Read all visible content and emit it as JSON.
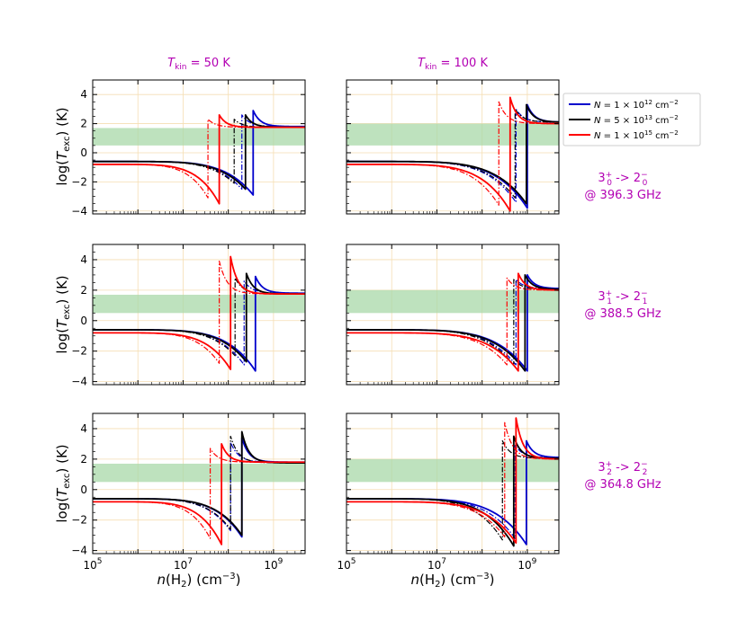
{
  "chart_data": {
    "type": "line",
    "title": "",
    "xlabel": "n(H2) (cm^-3)",
    "ylabel": "log(Texc) (K)",
    "xscale": "log",
    "xlim": [
      100000,
      5000000000
    ],
    "ylim": [
      -4.2,
      5
    ],
    "x_tick_labels": [
      "10^5",
      "10^7",
      "10^9"
    ],
    "y_tick_labels": [
      "-4",
      "-2",
      "0",
      "2",
      "4"
    ],
    "column_titles": [
      "T_kin = 50 K",
      "T_kin = 100 K"
    ],
    "row_titles": [
      {
        "transition": "3_0^+ -> 2_0^-",
        "freq": "@ 396.3 GHz"
      },
      {
        "transition": "3_1^+ -> 2_1^-",
        "freq": "@ 388.5 GHz"
      },
      {
        "transition": "3_2^+ -> 2_2^-",
        "freq": "@ 364.8 GHz"
      }
    ],
    "legend": {
      "placement": "right-of-top-right-panel",
      "entries": [
        {
          "label": "N = 1 × 10^12 cm^-2",
          "color": "#0000cc"
        },
        {
          "label": "N = 5 × 10^13 cm^-2",
          "color": "#000000"
        },
        {
          "label": "N = 1 × 10^15 cm^-2",
          "color": "#ff0000"
        }
      ]
    },
    "shaded_band": {
      "color": "#a8d8a8"
    },
    "panels": [
      {
        "row": 0,
        "col": 0,
        "band": [
          0.5,
          1.7
        ],
        "series": [
          {
            "name": "N=1e12",
            "color": "#0000cc",
            "start": -0.6,
            "logx": 8.55,
            "min": -2.9,
            "peak": 2.9,
            "final": 1.8
          },
          {
            "name": "N=5e13",
            "color": "#000000",
            "start": -0.6,
            "logx": 8.38,
            "min": -2.5,
            "peak": 2.6,
            "final": 1.75
          },
          {
            "name": "N=1e15",
            "color": "#ff0000",
            "start": -0.8,
            "logx": 7.8,
            "min": -3.5,
            "peak": 2.6,
            "final": 1.75
          }
        ]
      },
      {
        "row": 0,
        "col": 1,
        "band": [
          0.5,
          2.0
        ],
        "series": [
          {
            "name": "N=1e12",
            "color": "#0000cc",
            "start": -0.6,
            "logx": 9.0,
            "min": -3.8,
            "peak": 3.3,
            "final": 2.1
          },
          {
            "name": "N=5e13",
            "color": "#000000",
            "start": -0.6,
            "logx": 8.98,
            "min": -3.5,
            "peak": 3.3,
            "final": 2.1
          },
          {
            "name": "N=1e15",
            "color": "#ff0000",
            "start": -0.8,
            "logx": 8.62,
            "min": -4.0,
            "peak": 3.8,
            "final": 2.0
          }
        ]
      },
      {
        "row": 1,
        "col": 0,
        "band": [
          0.5,
          1.7
        ],
        "series": [
          {
            "name": "N=1e12",
            "color": "#0000cc",
            "start": -0.6,
            "logx": 8.6,
            "min": -3.3,
            "peak": 2.9,
            "final": 1.8
          },
          {
            "name": "N=5e13",
            "color": "#000000",
            "start": -0.6,
            "logx": 8.4,
            "min": -2.7,
            "peak": 3.1,
            "final": 1.75
          },
          {
            "name": "N=1e15",
            "color": "#ff0000",
            "start": -0.8,
            "logx": 8.05,
            "min": -3.2,
            "peak": 4.2,
            "final": 1.75
          }
        ]
      },
      {
        "row": 1,
        "col": 1,
        "band": [
          0.5,
          2.0
        ],
        "series": [
          {
            "name": "N=1e12",
            "color": "#0000cc",
            "start": -0.6,
            "logx": 9.0,
            "min": -3.3,
            "peak": 3.0,
            "final": 2.1
          },
          {
            "name": "N=5e13",
            "color": "#000000",
            "start": -0.6,
            "logx": 8.95,
            "min": -3.3,
            "peak": 3.0,
            "final": 2.05
          },
          {
            "name": "N=1e15",
            "color": "#ff0000",
            "start": -0.8,
            "logx": 8.8,
            "min": -3.3,
            "peak": 3.1,
            "final": 2.0
          }
        ]
      },
      {
        "row": 2,
        "col": 0,
        "band": [
          0.5,
          1.7
        ],
        "series": [
          {
            "name": "N=1e12",
            "color": "#0000cc",
            "start": -0.6,
            "logx": 8.3,
            "min": -3.1,
            "peak": 3.4,
            "final": 1.8
          },
          {
            "name": "N=5e13",
            "color": "#000000",
            "start": -0.6,
            "logx": 8.3,
            "min": -3.0,
            "peak": 3.8,
            "final": 1.75
          },
          {
            "name": "N=1e15",
            "color": "#ff0000",
            "start": -0.8,
            "logx": 7.85,
            "min": -3.6,
            "peak": 3.0,
            "final": 1.8
          }
        ]
      },
      {
        "row": 2,
        "col": 1,
        "band": [
          0.5,
          2.0
        ],
        "series": [
          {
            "name": "N=1e12",
            "color": "#0000cc",
            "start": -0.6,
            "logx": 8.98,
            "min": -3.6,
            "peak": 3.2,
            "final": 2.1
          },
          {
            "name": "N=5e13",
            "color": "#000000",
            "start": -0.6,
            "logx": 8.7,
            "min": -3.7,
            "peak": 3.5,
            "final": 2.05
          },
          {
            "name": "N=1e15",
            "color": "#ff0000",
            "start": -0.8,
            "logx": 8.75,
            "min": -3.5,
            "peak": 4.7,
            "final": 2.0
          }
        ]
      }
    ]
  }
}
